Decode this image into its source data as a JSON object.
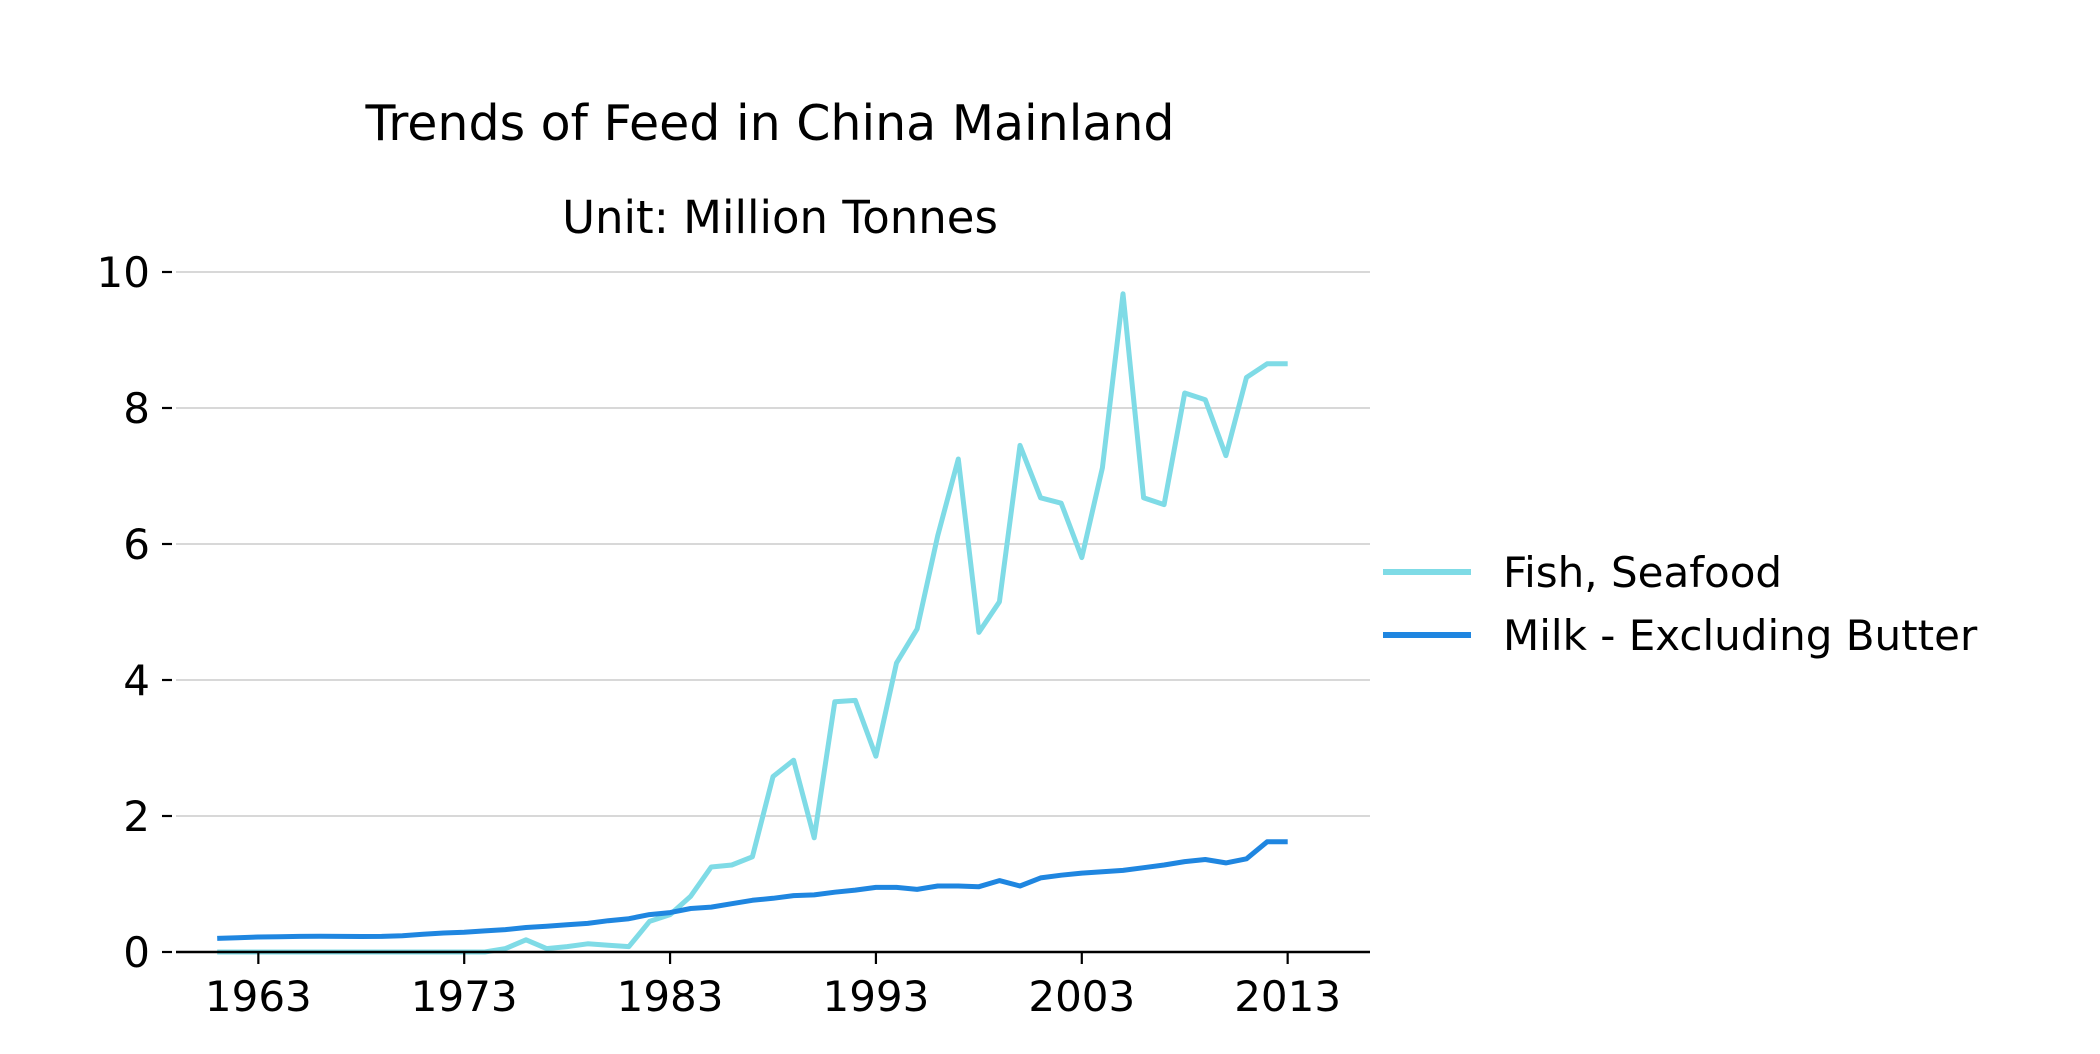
{
  "chart_data": {
    "type": "line",
    "title": "Trends of Feed in China Mainland",
    "subtitle": "Unit: Million Tonnes",
    "xlabel": "",
    "ylabel": "",
    "xlim": [
      1959,
      2017
    ],
    "ylim": [
      0,
      10
    ],
    "xticks": [
      1963,
      1973,
      1983,
      1993,
      2003,
      2013
    ],
    "yticks": [
      0,
      2,
      4,
      6,
      8,
      10
    ],
    "grid": "horizontal",
    "legend_position": "right",
    "x": [
      1961,
      1962,
      1963,
      1964,
      1965,
      1966,
      1967,
      1968,
      1969,
      1970,
      1971,
      1972,
      1973,
      1974,
      1975,
      1976,
      1977,
      1978,
      1979,
      1980,
      1981,
      1982,
      1983,
      1984,
      1985,
      1986,
      1987,
      1988,
      1989,
      1990,
      1991,
      1992,
      1993,
      1994,
      1995,
      1996,
      1997,
      1998,
      1999,
      2000,
      2001,
      2002,
      2003,
      2004,
      2005,
      2006,
      2007,
      2008,
      2009,
      2010,
      2011,
      2012,
      2013
    ],
    "series": [
      {
        "name": "Fish, Seafood",
        "color": "#7fdbe6",
        "values": [
          0.0,
          0.0,
          0.0,
          0.0,
          0.0,
          0.0,
          0.0,
          0.0,
          0.0,
          0.0,
          0.0,
          0.0,
          0.0,
          0.0,
          0.05,
          0.18,
          0.05,
          0.08,
          0.12,
          0.1,
          0.08,
          0.45,
          0.55,
          0.82,
          1.25,
          1.28,
          1.4,
          2.58,
          2.82,
          1.68,
          3.68,
          3.7,
          2.88,
          4.25,
          4.75,
          6.12,
          7.25,
          4.7,
          5.15,
          7.45,
          6.68,
          6.6,
          5.8,
          7.12,
          9.68,
          6.68,
          6.58,
          8.22,
          8.12,
          7.3,
          8.45,
          8.65,
          8.65
        ]
      },
      {
        "name": "Milk - Excluding Butter",
        "color": "#1f86e0",
        "values": [
          0.2,
          0.21,
          0.22,
          0.225,
          0.23,
          0.232,
          0.23,
          0.228,
          0.23,
          0.24,
          0.26,
          0.28,
          0.29,
          0.31,
          0.33,
          0.36,
          0.38,
          0.4,
          0.42,
          0.46,
          0.49,
          0.55,
          0.58,
          0.64,
          0.66,
          0.71,
          0.76,
          0.79,
          0.83,
          0.84,
          0.88,
          0.91,
          0.95,
          0.95,
          0.92,
          0.97,
          0.97,
          0.96,
          1.05,
          0.97,
          1.09,
          1.13,
          1.16,
          1.18,
          1.2,
          1.24,
          1.28,
          1.33,
          1.36,
          1.31,
          1.37,
          1.62,
          1.62
        ]
      }
    ]
  }
}
